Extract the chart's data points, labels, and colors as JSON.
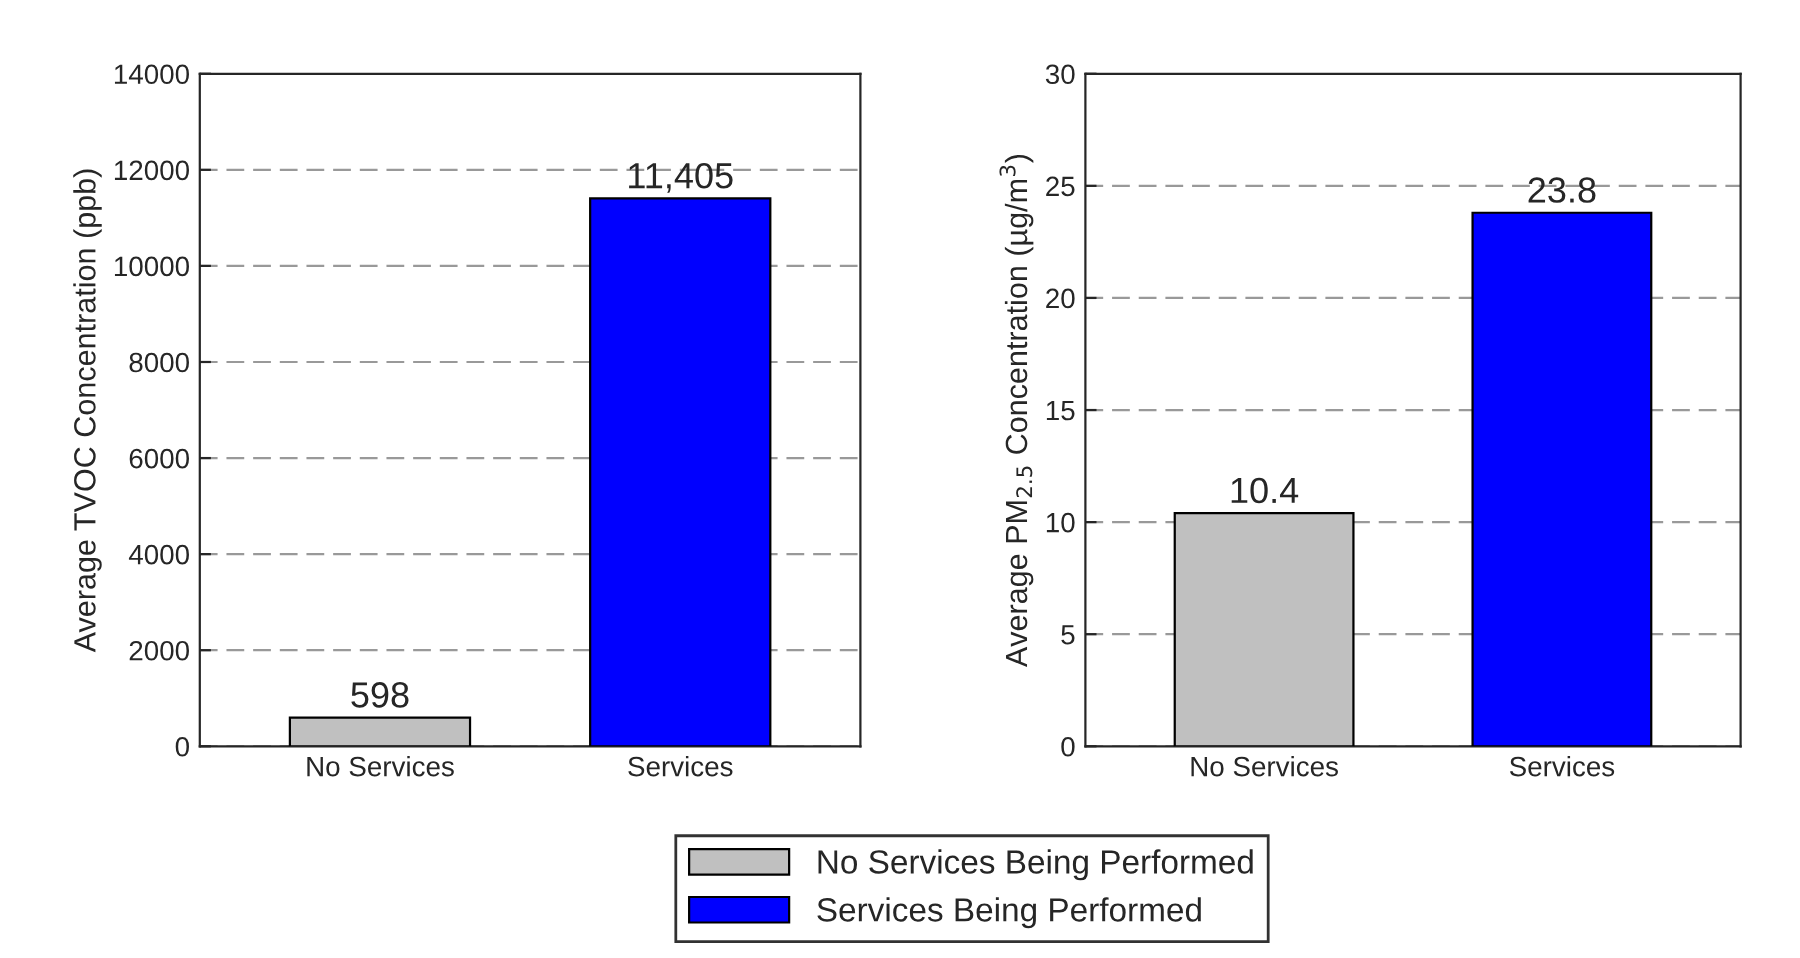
{
  "chart_data": [
    {
      "type": "bar",
      "categories": [
        "No Services",
        "Services"
      ],
      "ylabel": "Average TVOC Concentration (ppb)",
      "ylim": [
        0,
        14000
      ],
      "yticks": [
        0,
        2000,
        4000,
        6000,
        8000,
        10000,
        12000,
        14000
      ],
      "grid": "y",
      "legend": "bottom",
      "series": [
        {
          "name": "No Services Being Performed",
          "color": "#c0c0c0",
          "values": [
            598,
            null
          ],
          "value_labels": [
            "598",
            null
          ]
        },
        {
          "name": "Services Being Performed",
          "color": "#0000ff",
          "values": [
            null,
            11405
          ],
          "value_labels": [
            null,
            "11,405"
          ]
        }
      ]
    },
    {
      "type": "bar",
      "categories": [
        "No Services",
        "Services"
      ],
      "ylabel": "Average PM$_{2.5}$ Concentration (µg/m$^{3}$)",
      "ylim": [
        0,
        30
      ],
      "yticks": [
        0,
        5,
        10,
        15,
        20,
        25,
        30
      ],
      "grid": "y",
      "series": [
        {
          "color": "#c0c0c0",
          "values": [
            10.4,
            null
          ],
          "value_labels": [
            "10.4",
            null
          ]
        },
        {
          "color": "#0000ff",
          "values": [
            null,
            23.8
          ],
          "value_labels": [
            null,
            "23.8"
          ]
        }
      ]
    }
  ]
}
